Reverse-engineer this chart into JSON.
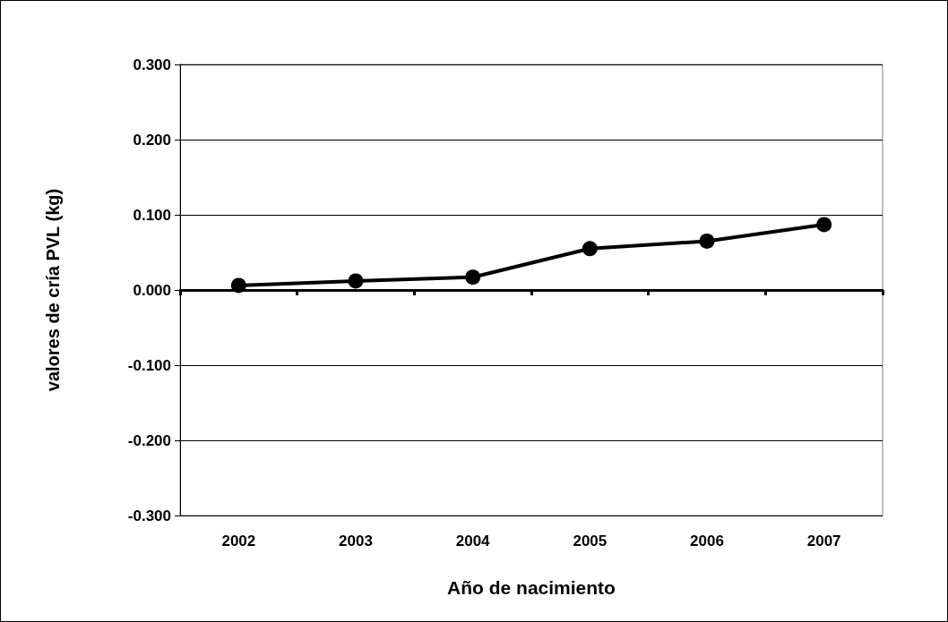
{
  "chart_data": {
    "type": "line",
    "xlabel": "Año de nacimiento",
    "ylabel": "valores de cría PVL (kg)",
    "categories": [
      "2002",
      "2003",
      "2004",
      "2005",
      "2006",
      "2007"
    ],
    "series": [
      {
        "color": "#000000",
        "values": [
          0.006,
          0.012,
          0.017,
          0.055,
          0.065,
          0.087
        ]
      }
    ],
    "ylim": [
      -0.3,
      0.3
    ],
    "yticks": [
      {
        "value": -0.3,
        "label": "-0.300"
      },
      {
        "value": -0.2,
        "label": "-0.200"
      },
      {
        "value": -0.1,
        "label": "-0.100"
      },
      {
        "value": 0,
        "label": "0.000"
      },
      {
        "value": 0.1,
        "label": "0.100"
      },
      {
        "value": 0.2,
        "label": "0.200"
      },
      {
        "value": 0.3,
        "label": "0.300"
      }
    ],
    "grid": "y",
    "marker": "circle",
    "line_style": "solid"
  }
}
